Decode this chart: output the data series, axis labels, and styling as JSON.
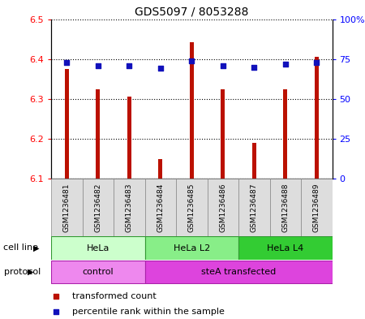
{
  "title": "GDS5097 / 8053288",
  "samples": [
    "GSM1236481",
    "GSM1236482",
    "GSM1236483",
    "GSM1236484",
    "GSM1236485",
    "GSM1236486",
    "GSM1236487",
    "GSM1236488",
    "GSM1236489"
  ],
  "transformed_counts": [
    6.375,
    6.325,
    6.305,
    6.148,
    6.442,
    6.325,
    6.19,
    6.325,
    6.405
  ],
  "percentile_ranks": [
    73,
    71,
    71,
    69,
    74,
    71,
    70,
    72,
    73
  ],
  "ylim_left": [
    6.1,
    6.5
  ],
  "ylim_right": [
    0,
    100
  ],
  "yticks_left": [
    6.1,
    6.2,
    6.3,
    6.4,
    6.5
  ],
  "yticks_right": [
    0,
    25,
    50,
    75,
    100
  ],
  "ytick_labels_right": [
    "0",
    "25",
    "50",
    "75",
    "100%"
  ],
  "bar_color": "#bb1100",
  "dot_color": "#1111bb",
  "bar_width": 0.12,
  "cell_line_groups": [
    {
      "label": "HeLa",
      "start": 0,
      "end": 2,
      "color": "#ccffcc"
    },
    {
      "label": "HeLa L2",
      "start": 3,
      "end": 5,
      "color": "#88ee88"
    },
    {
      "label": "HeLa L4",
      "start": 6,
      "end": 8,
      "color": "#33cc33"
    }
  ],
  "protocol_groups": [
    {
      "label": "control",
      "start": 0,
      "end": 2,
      "color": "#ee88ee"
    },
    {
      "label": "steA transfected",
      "start": 3,
      "end": 8,
      "color": "#dd44dd"
    }
  ],
  "legend_items": [
    {
      "label": "transformed count",
      "color": "#bb1100",
      "marker": "s"
    },
    {
      "label": "percentile rank within the sample",
      "color": "#1111bb",
      "marker": "s"
    }
  ],
  "cell_line_label": "cell line",
  "protocol_label": "protocol"
}
